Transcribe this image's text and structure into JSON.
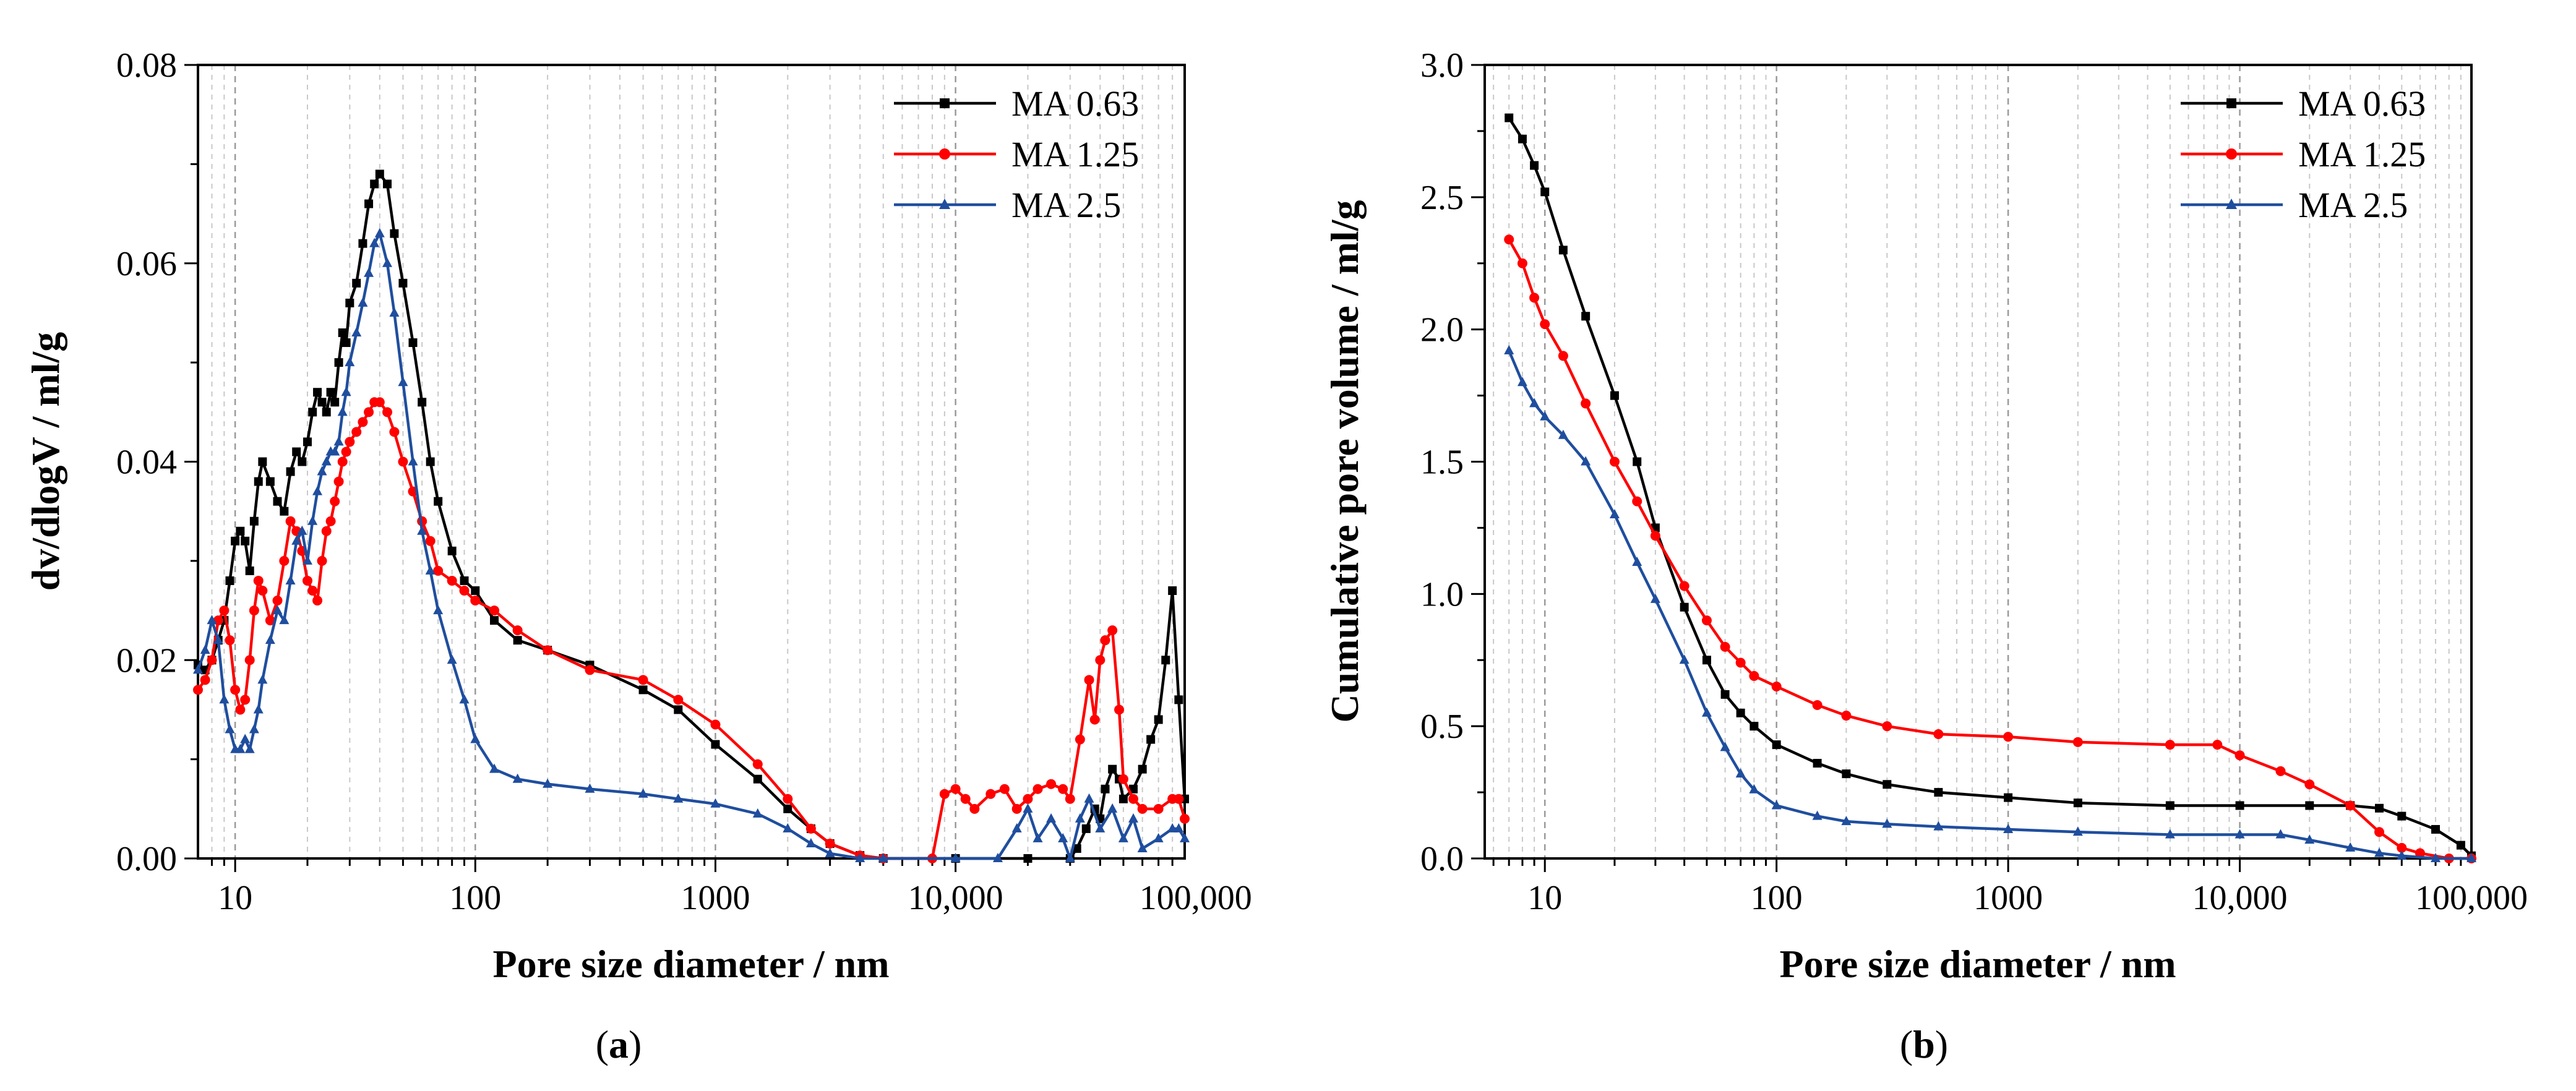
{
  "chart_data": [
    {
      "type": "line",
      "panel_label": "a",
      "xlabel": "Pore size diameter / nm",
      "ylabel": "dv/dlogV / ml/g",
      "xscale": "log",
      "xlim": [
        7,
        90000
      ],
      "ylim": [
        0,
        0.08
      ],
      "xticks": [
        10,
        100,
        1000,
        10000,
        100000
      ],
      "xtick_labels": [
        "10",
        "100",
        "1000",
        "10,000",
        "100,000"
      ],
      "yticks": [
        0,
        0.02,
        0.04,
        0.06,
        0.08
      ],
      "ytick_labels": [
        "0.00",
        "0.02",
        "0.04",
        "0.06",
        "0.08"
      ],
      "grid": "vertical dashed at log-minor positions",
      "legend_position": "top-right",
      "series": [
        {
          "name": "MA 0.63",
          "color": "#000000",
          "marker": "square",
          "x": [
            7,
            7.5,
            8,
            8.5,
            9,
            9.5,
            10,
            10.5,
            11,
            11.5,
            12,
            12.5,
            13,
            14,
            15,
            16,
            17,
            18,
            19,
            20,
            21,
            22,
            23,
            24,
            25,
            26,
            27,
            28,
            29,
            30,
            32,
            34,
            36,
            38,
            40,
            43,
            46,
            50,
            55,
            60,
            65,
            70,
            80,
            90,
            100,
            120,
            150,
            200,
            300,
            500,
            700,
            1000,
            1500,
            2000,
            2500,
            3000,
            4000,
            5000,
            10000,
            20000,
            30000,
            32000,
            35000,
            38000,
            40000,
            42000,
            45000,
            48000,
            50000,
            55000,
            60000,
            65000,
            70000,
            75000,
            80000,
            85000,
            90000
          ],
          "values": [
            0.0195,
            0.019,
            0.02,
            0.022,
            0.024,
            0.028,
            0.032,
            0.033,
            0.032,
            0.029,
            0.034,
            0.038,
            0.04,
            0.038,
            0.036,
            0.035,
            0.039,
            0.041,
            0.04,
            0.042,
            0.045,
            0.047,
            0.046,
            0.045,
            0.047,
            0.046,
            0.05,
            0.053,
            0.052,
            0.056,
            0.058,
            0.062,
            0.066,
            0.068,
            0.069,
            0.068,
            0.063,
            0.058,
            0.052,
            0.046,
            0.04,
            0.036,
            0.031,
            0.028,
            0.027,
            0.024,
            0.022,
            0.021,
            0.0195,
            0.017,
            0.015,
            0.0115,
            0.008,
            0.005,
            0.003,
            0.0015,
            0.0003,
            0.0,
            0.0,
            0.0,
            0.0,
            0.001,
            0.003,
            0.005,
            0.004,
            0.007,
            0.009,
            0.008,
            0.006,
            0.007,
            0.009,
            0.012,
            0.014,
            0.02,
            0.027,
            0.016,
            0.006
          ]
        },
        {
          "name": "MA 1.25",
          "color": "#ff0000",
          "marker": "circle",
          "x": [
            7,
            7.5,
            8,
            8.5,
            9,
            9.5,
            10,
            10.5,
            11,
            11.5,
            12,
            12.5,
            13,
            14,
            15,
            16,
            17,
            18,
            19,
            20,
            21,
            22,
            23,
            24,
            25,
            26,
            27,
            28,
            29,
            30,
            32,
            34,
            36,
            38,
            40,
            43,
            46,
            50,
            55,
            60,
            65,
            70,
            80,
            90,
            100,
            120,
            150,
            200,
            300,
            500,
            700,
            1000,
            1500,
            2000,
            2500,
            3000,
            4000,
            5000,
            8000,
            9000,
            10000,
            11000,
            12000,
            14000,
            16000,
            18000,
            20000,
            22000,
            25000,
            28000,
            30000,
            33000,
            36000,
            38000,
            40000,
            42000,
            45000,
            48000,
            50000,
            55000,
            60000,
            70000,
            80000,
            85000,
            90000
          ],
          "values": [
            0.017,
            0.018,
            0.02,
            0.024,
            0.025,
            0.022,
            0.017,
            0.015,
            0.016,
            0.02,
            0.025,
            0.028,
            0.027,
            0.024,
            0.026,
            0.03,
            0.034,
            0.033,
            0.031,
            0.028,
            0.027,
            0.026,
            0.03,
            0.033,
            0.034,
            0.036,
            0.038,
            0.04,
            0.041,
            0.042,
            0.043,
            0.044,
            0.045,
            0.046,
            0.046,
            0.045,
            0.043,
            0.04,
            0.037,
            0.034,
            0.032,
            0.029,
            0.028,
            0.027,
            0.026,
            0.025,
            0.023,
            0.021,
            0.019,
            0.018,
            0.016,
            0.0135,
            0.0095,
            0.006,
            0.003,
            0.0015,
            0.0003,
            0.0,
            0.0,
            0.0065,
            0.007,
            0.006,
            0.005,
            0.0065,
            0.007,
            0.005,
            0.006,
            0.007,
            0.0075,
            0.007,
            0.006,
            0.012,
            0.018,
            0.014,
            0.02,
            0.022,
            0.023,
            0.015,
            0.008,
            0.006,
            0.005,
            0.005,
            0.006,
            0.006,
            0.004
          ]
        },
        {
          "name": "MA 2.5",
          "color": "#1f4e9e",
          "marker": "triangle",
          "x": [
            7,
            7.5,
            8,
            8.5,
            9,
            9.5,
            10,
            10.5,
            11,
            11.5,
            12,
            12.5,
            13,
            14,
            15,
            16,
            17,
            18,
            19,
            20,
            21,
            22,
            23,
            24,
            25,
            26,
            27,
            28,
            29,
            30,
            32,
            34,
            36,
            38,
            40,
            43,
            46,
            50,
            55,
            60,
            65,
            70,
            80,
            90,
            100,
            120,
            150,
            200,
            300,
            500,
            700,
            1000,
            1500,
            2000,
            2500,
            3000,
            4000,
            5000,
            10000,
            15000,
            18000,
            20000,
            22000,
            25000,
            28000,
            30000,
            33000,
            36000,
            40000,
            45000,
            50000,
            55000,
            60000,
            70000,
            80000,
            85000,
            90000
          ],
          "values": [
            0.019,
            0.021,
            0.024,
            0.022,
            0.016,
            0.013,
            0.011,
            0.011,
            0.012,
            0.011,
            0.013,
            0.015,
            0.018,
            0.022,
            0.025,
            0.024,
            0.028,
            0.032,
            0.033,
            0.03,
            0.034,
            0.037,
            0.039,
            0.04,
            0.041,
            0.041,
            0.042,
            0.045,
            0.047,
            0.05,
            0.053,
            0.056,
            0.059,
            0.062,
            0.063,
            0.06,
            0.055,
            0.048,
            0.04,
            0.033,
            0.029,
            0.025,
            0.02,
            0.016,
            0.012,
            0.009,
            0.008,
            0.0075,
            0.007,
            0.0065,
            0.006,
            0.0055,
            0.0045,
            0.003,
            0.0015,
            0.0005,
            0.0,
            0.0,
            0.0,
            0.0,
            0.003,
            0.005,
            0.002,
            0.004,
            0.002,
            0.0,
            0.004,
            0.006,
            0.003,
            0.005,
            0.002,
            0.004,
            0.001,
            0.002,
            0.003,
            0.003,
            0.002
          ]
        }
      ]
    },
    {
      "type": "line",
      "panel_label": "b",
      "xlabel": "Pore size diameter / nm",
      "ylabel": "Cumulative pore volume / ml/g",
      "xscale": "log",
      "xlim": [
        5.5,
        100000
      ],
      "ylim": [
        0,
        3.0
      ],
      "xticks": [
        10,
        100,
        1000,
        10000,
        100000
      ],
      "xtick_labels": [
        "10",
        "100",
        "1000",
        "10,000",
        "100,000"
      ],
      "yticks": [
        0,
        0.5,
        1.0,
        1.5,
        2.0,
        2.5,
        3.0
      ],
      "ytick_labels": [
        "0.0",
        "0.5",
        "1.0",
        "1.5",
        "2.0",
        "2.5",
        "3.0"
      ],
      "grid": "vertical dashed at log-minor positions",
      "legend_position": "top-right",
      "series": [
        {
          "name": "MA 0.63",
          "color": "#000000",
          "marker": "square",
          "x": [
            7,
            8,
            9,
            10,
            12,
            15,
            20,
            25,
            30,
            40,
            50,
            60,
            70,
            80,
            100,
            150,
            200,
            300,
            500,
            1000,
            2000,
            5000,
            10000,
            20000,
            30000,
            40000,
            50000,
            70000,
            90000,
            100000
          ],
          "values": [
            2.8,
            2.72,
            2.62,
            2.52,
            2.3,
            2.05,
            1.75,
            1.5,
            1.25,
            0.95,
            0.75,
            0.62,
            0.55,
            0.5,
            0.43,
            0.36,
            0.32,
            0.28,
            0.25,
            0.23,
            0.21,
            0.2,
            0.2,
            0.2,
            0.2,
            0.19,
            0.16,
            0.11,
            0.05,
            0.01
          ]
        },
        {
          "name": "MA 1.25",
          "color": "#ff0000",
          "marker": "circle",
          "x": [
            7,
            8,
            9,
            10,
            12,
            15,
            20,
            25,
            30,
            40,
            50,
            60,
            70,
            80,
            100,
            150,
            200,
            300,
            500,
            1000,
            2000,
            5000,
            8000,
            10000,
            15000,
            20000,
            30000,
            40000,
            50000,
            60000,
            80000,
            100000
          ],
          "values": [
            2.34,
            2.25,
            2.12,
            2.02,
            1.9,
            1.72,
            1.5,
            1.35,
            1.22,
            1.03,
            0.9,
            0.8,
            0.74,
            0.69,
            0.65,
            0.58,
            0.54,
            0.5,
            0.47,
            0.46,
            0.44,
            0.43,
            0.43,
            0.39,
            0.33,
            0.28,
            0.2,
            0.1,
            0.04,
            0.02,
            0.0,
            0.0
          ]
        },
        {
          "name": "MA 2.5",
          "color": "#1f4e9e",
          "marker": "triangle",
          "x": [
            7,
            8,
            9,
            10,
            12,
            15,
            20,
            25,
            30,
            40,
            50,
            60,
            70,
            80,
            100,
            150,
            200,
            300,
            500,
            1000,
            2000,
            5000,
            10000,
            15000,
            20000,
            30000,
            40000,
            50000,
            70000,
            100000
          ],
          "values": [
            1.92,
            1.8,
            1.72,
            1.67,
            1.6,
            1.5,
            1.3,
            1.12,
            0.98,
            0.75,
            0.55,
            0.42,
            0.32,
            0.26,
            0.2,
            0.16,
            0.14,
            0.13,
            0.12,
            0.11,
            0.1,
            0.09,
            0.09,
            0.09,
            0.07,
            0.04,
            0.02,
            0.01,
            0.0,
            0.0
          ]
        }
      ]
    }
  ],
  "captions": {
    "a": {
      "open": "(",
      "letter": "a",
      "close": ")"
    },
    "b": {
      "open": "(",
      "letter": "b",
      "close": ")"
    }
  }
}
